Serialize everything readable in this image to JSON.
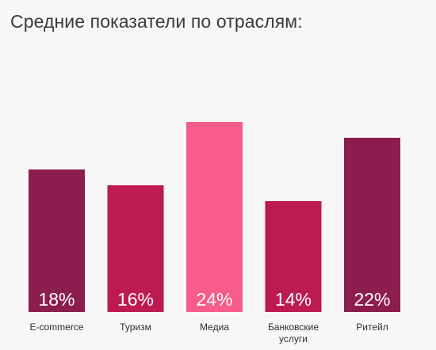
{
  "chart_data": {
    "type": "bar",
    "title": "Средние показатели по отраслям:",
    "xlabel": "",
    "ylabel": "",
    "ylim": [
      0,
      30
    ],
    "grid": false,
    "legend": "none",
    "categories": [
      [
        "E-commerce"
      ],
      [
        "Туризм"
      ],
      [
        "Медиа"
      ],
      [
        "Банковские",
        "услуги"
      ],
      [
        "Ритейл"
      ]
    ],
    "values": [
      18,
      16,
      24,
      14,
      22
    ],
    "value_labels": [
      "18%",
      "16%",
      "24%",
      "14%",
      "22%"
    ],
    "colors": [
      "#8c1d4f",
      "#be1a52",
      "#f65c8c",
      "#be1a52",
      "#8c1d4f"
    ]
  }
}
